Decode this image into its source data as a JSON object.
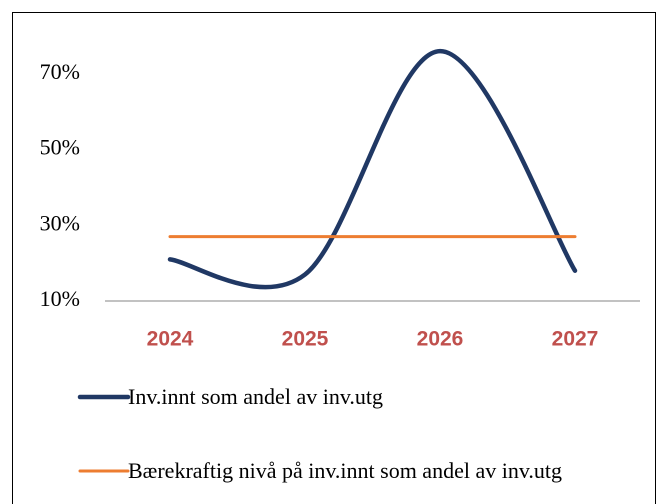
{
  "chart_data": {
    "type": "line",
    "categories": [
      "2024",
      "2025",
      "2026",
      "2027"
    ],
    "series": [
      {
        "name": "Inv.innt som andel av inv.utg",
        "color": "#203864",
        "values": [
          21,
          17,
          76,
          18
        ],
        "smooth": true
      },
      {
        "name": "Bærekraftig nivå på inv.innt som andel av inv.utg",
        "color": "#ed7d31",
        "values": [
          27,
          27,
          27,
          27
        ]
      }
    ],
    "ylim": [
      10,
      80
    ],
    "yticks": [
      {
        "value": 10,
        "label": "10%"
      },
      {
        "value": 30,
        "label": "30%"
      },
      {
        "value": 50,
        "label": "50%"
      },
      {
        "value": 70,
        "label": "70%"
      }
    ],
    "legend": "bottom"
  }
}
